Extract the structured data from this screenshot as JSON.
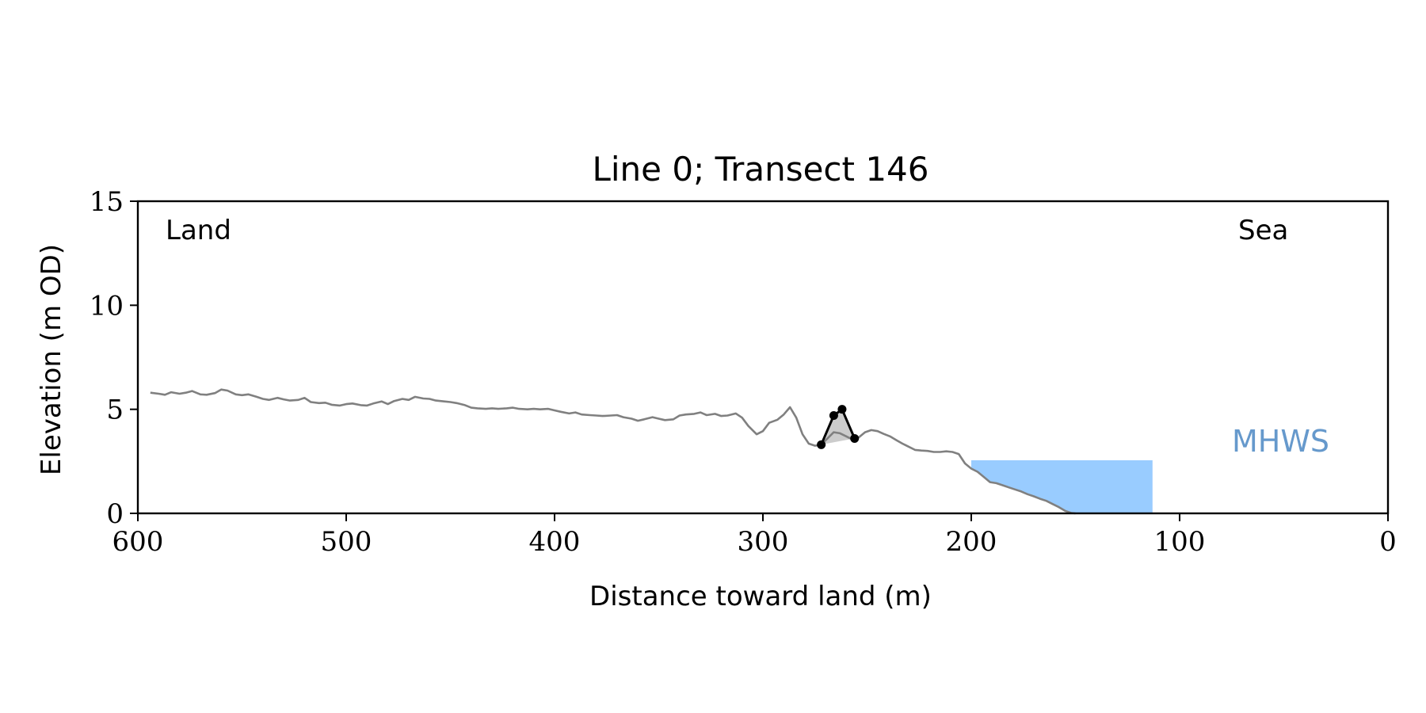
{
  "chart_data": {
    "type": "line",
    "title": "Line 0; Transect 146",
    "xlabel": "Distance toward land (m)",
    "ylabel": "Elevation (m OD)",
    "xlim": [
      600,
      0
    ],
    "ylim": [
      0,
      15
    ],
    "x_inverted": true,
    "x_ticks": [
      600,
      500,
      400,
      300,
      200,
      100,
      0
    ],
    "y_ticks": [
      0,
      5,
      10,
      15
    ],
    "grid": false,
    "annotations": {
      "land": "Land",
      "sea": "Sea",
      "mhws": "MHWS"
    },
    "colors": {
      "profile": "#808080",
      "dune": "#000000",
      "dune_fill": "#cccccc",
      "water": "#99ccff",
      "mhws_label": "#6699cc"
    },
    "series": [
      {
        "style": "profile",
        "x": [
          594,
          590,
          587,
          584,
          580,
          577,
          574,
          570,
          567,
          563,
          560,
          557,
          553,
          550,
          547,
          543,
          540,
          537,
          533,
          530,
          527,
          523,
          520,
          517,
          513,
          510,
          507,
          503,
          500,
          497,
          493,
          490,
          487,
          483,
          480,
          477,
          473,
          470,
          467,
          463,
          460,
          457,
          453,
          450,
          447,
          443,
          440,
          437,
          433,
          430,
          427,
          423,
          420,
          417,
          413,
          410,
          407,
          403,
          400,
          397,
          393,
          390,
          387,
          383,
          380,
          377,
          373,
          370,
          367,
          363,
          360,
          357,
          353,
          350,
          347,
          343,
          340,
          337,
          333,
          330,
          327,
          323,
          320,
          317,
          313,
          310,
          307,
          303,
          300,
          297,
          293,
          290,
          287,
          284,
          281,
          278,
          275,
          272,
          269,
          266,
          263,
          260,
          257,
          254,
          251,
          248,
          245,
          242,
          239,
          236,
          233,
          230,
          227,
          224,
          221,
          218,
          215,
          212,
          209,
          206,
          203,
          200,
          197,
          194,
          191,
          188,
          185,
          182,
          179,
          176,
          173,
          170,
          167,
          164,
          161,
          158,
          155,
          152,
          150
        ],
        "y": [
          5.8,
          5.75,
          5.7,
          5.82,
          5.75,
          5.8,
          5.88,
          5.72,
          5.7,
          5.78,
          5.95,
          5.9,
          5.72,
          5.68,
          5.72,
          5.6,
          5.5,
          5.45,
          5.55,
          5.48,
          5.42,
          5.45,
          5.55,
          5.35,
          5.3,
          5.32,
          5.22,
          5.18,
          5.25,
          5.28,
          5.2,
          5.18,
          5.28,
          5.38,
          5.25,
          5.4,
          5.5,
          5.45,
          5.6,
          5.52,
          5.5,
          5.42,
          5.38,
          5.35,
          5.3,
          5.2,
          5.08,
          5.05,
          5.02,
          5.05,
          5.02,
          5.05,
          5.08,
          5.02,
          5.0,
          5.02,
          5.0,
          5.02,
          4.95,
          4.88,
          4.8,
          4.85,
          4.75,
          4.72,
          4.7,
          4.68,
          4.7,
          4.72,
          4.62,
          4.55,
          4.45,
          4.52,
          4.62,
          4.55,
          4.48,
          4.52,
          4.7,
          4.75,
          4.78,
          4.85,
          4.72,
          4.78,
          4.68,
          4.7,
          4.8,
          4.6,
          4.2,
          3.8,
          3.95,
          4.35,
          4.5,
          4.75,
          5.1,
          4.6,
          3.8,
          3.35,
          3.25,
          3.3,
          3.6,
          3.9,
          3.85,
          3.7,
          3.55,
          3.65,
          3.9,
          4.0,
          3.95,
          3.82,
          3.7,
          3.52,
          3.35,
          3.2,
          3.05,
          3.02,
          3.0,
          2.95,
          2.95,
          2.98,
          2.95,
          2.85,
          2.4,
          2.15,
          2.0,
          1.75,
          1.5,
          1.45,
          1.35,
          1.25,
          1.15,
          1.05,
          0.92,
          0.82,
          0.7,
          0.6,
          0.45,
          0.3,
          0.12,
          0.02,
          0.0
        ]
      },
      {
        "style": "dune",
        "x": [
          272,
          266,
          262,
          256
        ],
        "y": [
          3.3,
          4.7,
          5.0,
          3.6
        ]
      }
    ],
    "water": {
      "x_from": 200,
      "x_to": 113,
      "level": 2.55
    }
  }
}
